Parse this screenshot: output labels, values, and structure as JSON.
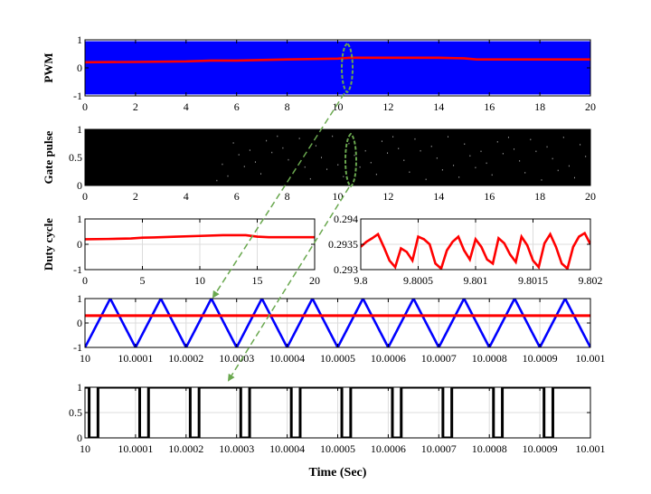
{
  "chart_data": [
    {
      "id": "pwm",
      "type": "line",
      "ylabel": "PWM",
      "xlabel": "",
      "xlim": [
        0,
        20
      ],
      "ylim": [
        -1,
        1
      ],
      "xticks": [
        0,
        2,
        4,
        6,
        8,
        10,
        12,
        14,
        16,
        18,
        20
      ],
      "xtick_labels": [
        "0",
        "2",
        "4",
        "6",
        "8",
        "10",
        "12",
        "14",
        "16",
        "18",
        "20"
      ],
      "yticks": [
        -1,
        0,
        1
      ],
      "ytick_labels": [
        "-1",
        "0",
        "1"
      ],
      "grid": true,
      "series": [
        {
          "role": "carrier",
          "color": "#0000ff",
          "fill_band": [
            -0.95,
            0.95
          ]
        },
        {
          "role": "duty",
          "color": "#ff0000",
          "x": [
            0,
            2,
            4,
            5,
            6,
            8,
            10,
            10.5,
            12,
            14,
            15,
            15.5,
            18,
            20
          ],
          "y": [
            0.2,
            0.21,
            0.23,
            0.26,
            0.26,
            0.3,
            0.33,
            0.36,
            0.36,
            0.36,
            0.34,
            0.3,
            0.3,
            0.3
          ]
        }
      ]
    },
    {
      "id": "gate",
      "type": "line",
      "ylabel": "Gate pulse",
      "xlabel": "",
      "xlim": [
        0,
        20
      ],
      "ylim": [
        0,
        1
      ],
      "xticks": [
        0,
        2,
        4,
        6,
        8,
        10,
        12,
        14,
        16,
        18,
        20
      ],
      "xtick_labels": [
        "0",
        "2",
        "4",
        "6",
        "8",
        "10",
        "12",
        "14",
        "16",
        "18",
        "20"
      ],
      "yticks": [
        0,
        0.5,
        1
      ],
      "ytick_labels": [
        "0",
        "0.5",
        "1"
      ],
      "grid": true,
      "series": [
        {
          "role": "pulse",
          "color": "#000000",
          "fill_band": [
            -0.02,
            1.02
          ]
        }
      ]
    },
    {
      "id": "duty-full",
      "type": "line",
      "ylabel": "Duty cycle",
      "xlabel": "",
      "xlim": [
        0,
        20
      ],
      "ylim": [
        -1,
        1
      ],
      "xticks": [
        0,
        5,
        10,
        15,
        20
      ],
      "xtick_labels": [
        "0",
        "5",
        "10",
        "15",
        "20"
      ],
      "yticks": [
        -1,
        0,
        1
      ],
      "ytick_labels": [
        "-1",
        "0",
        "1"
      ],
      "grid": true,
      "series": [
        {
          "role": "duty",
          "color": "#ff0000",
          "x": [
            0,
            2,
            4,
            5,
            6,
            8,
            10,
            12,
            14,
            15,
            16,
            18,
            20
          ],
          "y": [
            0.2,
            0.21,
            0.23,
            0.26,
            0.27,
            0.3,
            0.33,
            0.36,
            0.36,
            0.3,
            0.28,
            0.28,
            0.28
          ]
        }
      ]
    },
    {
      "id": "duty-zoom",
      "type": "line",
      "ylabel": "",
      "xlabel": "",
      "xlim": [
        9.8,
        9.802
      ],
      "ylim": [
        0.293,
        0.294
      ],
      "xticks": [
        9.8,
        9.8005,
        9.801,
        9.8015,
        9.802
      ],
      "xtick_labels": [
        "9.8",
        "9.8005",
        "9.801",
        "9.8015",
        "9.802"
      ],
      "yticks": [
        0.293,
        0.2935,
        0.294
      ],
      "ytick_labels": [
        "0.293",
        "0.2935",
        "0.294"
      ],
      "grid": true,
      "series": [
        {
          "role": "duty",
          "color": "#ff0000",
          "x": [
            9.8,
            9.80005,
            9.8001,
            9.80015,
            9.8002,
            9.80025,
            9.8003,
            9.80035,
            9.8004,
            9.80045,
            9.8005,
            9.80055,
            9.8006,
            9.80065,
            9.8007,
            9.80075,
            9.8008,
            9.80085,
            9.8009,
            9.80095,
            9.801,
            9.80105,
            9.8011,
            9.80115,
            9.8012,
            9.80125,
            9.8013,
            9.80135,
            9.8014,
            9.80145,
            9.8015,
            9.80155,
            9.8016,
            9.80165,
            9.8017,
            9.80175,
            9.8018,
            9.80185,
            9.8019,
            9.80195,
            9.802
          ],
          "y": [
            0.29345,
            0.29355,
            0.29362,
            0.2937,
            0.29345,
            0.29318,
            0.29305,
            0.29342,
            0.29335,
            0.29318,
            0.29365,
            0.2936,
            0.2935,
            0.29312,
            0.29302,
            0.29338,
            0.29355,
            0.29365,
            0.29338,
            0.2932,
            0.2936,
            0.29345,
            0.2932,
            0.29312,
            0.29362,
            0.29352,
            0.2933,
            0.29315,
            0.29365,
            0.29348,
            0.29318,
            0.29305,
            0.29352,
            0.2937,
            0.29345,
            0.29312,
            0.29302,
            0.29345,
            0.29365,
            0.29372,
            0.2935
          ]
        }
      ]
    },
    {
      "id": "carrier-zoom",
      "type": "line",
      "ylabel": "",
      "xlabel": "",
      "xlim": [
        10,
        10.001
      ],
      "ylim": [
        -1,
        1
      ],
      "xticks": [
        10,
        10.0001,
        10.0002,
        10.0003,
        10.0004,
        10.0005,
        10.0006,
        10.0007,
        10.0008,
        10.0009,
        10.001
      ],
      "xtick_labels": [
        "10",
        "10.0001",
        "10.0002",
        "10.0003",
        "10.0004",
        "10.0005",
        "10.0006",
        "10.0007",
        "10.0008",
        "10.0009",
        "10.001"
      ],
      "yticks": [
        -1,
        0,
        1
      ],
      "ytick_labels": [
        "-1",
        "0",
        "1"
      ],
      "grid": true,
      "series": [
        {
          "role": "carrier",
          "color": "#0000ff",
          "triangle_period": 0.0001,
          "peak_phase": 5e-05
        },
        {
          "role": "duty",
          "color": "#ff0000",
          "constant": 0.3
        }
      ]
    },
    {
      "id": "gate-zoom",
      "type": "line",
      "ylabel": "",
      "xlabel": "Time (Sec)",
      "xlim": [
        10,
        10.001
      ],
      "ylim": [
        0,
        1
      ],
      "xticks": [
        10,
        10.0001,
        10.0002,
        10.0003,
        10.0004,
        10.0005,
        10.0006,
        10.0007,
        10.0008,
        10.0009,
        10.001
      ],
      "xtick_labels": [
        "10",
        "10.0001",
        "10.0002",
        "10.0003",
        "10.0004",
        "10.0005",
        "10.0006",
        "10.0007",
        "10.0008",
        "10.0009",
        "10.001"
      ],
      "yticks": [
        0,
        0.5,
        1
      ],
      "ytick_labels": [
        "0",
        "0.5",
        "1"
      ],
      "grid": true,
      "series": [
        {
          "role": "pulse",
          "color": "#000000",
          "x": [
            10,
            10.0000082,
            10.0000082,
            10.0000257,
            10.0000257,
            10.0001082,
            10.0001082,
            10.0001257,
            10.0001257,
            10.0002082,
            10.0002082,
            10.0002257,
            10.0002257,
            10.0003082,
            10.0003082,
            10.0003257,
            10.0003257,
            10.0004082,
            10.0004082,
            10.0004257,
            10.0004257,
            10.0005082,
            10.0005082,
            10.0005257,
            10.0005257,
            10.0006082,
            10.0006082,
            10.0006257,
            10.0006257,
            10.0007082,
            10.0007082,
            10.0007257,
            10.0007257,
            10.0008082,
            10.0008082,
            10.0008257,
            10.0008257,
            10.0009082,
            10.0009082,
            10.0009257,
            10.0009257,
            10.001
          ],
          "y": [
            1,
            1,
            0,
            0,
            1,
            1,
            0,
            0,
            1,
            1,
            0,
            0,
            1,
            1,
            0,
            0,
            1,
            1,
            0,
            0,
            1,
            1,
            0,
            0,
            1,
            1,
            0,
            0,
            1,
            1,
            0,
            0,
            1,
            1,
            0,
            0,
            1,
            1,
            0,
            0,
            1,
            1
          ]
        }
      ]
    }
  ],
  "annotations": {
    "color": "#6aa84f",
    "arrows": [
      {
        "from": "pwm",
        "to": "carrier-zoom"
      },
      {
        "from": "gate",
        "to": "gate-zoom"
      }
    ]
  }
}
